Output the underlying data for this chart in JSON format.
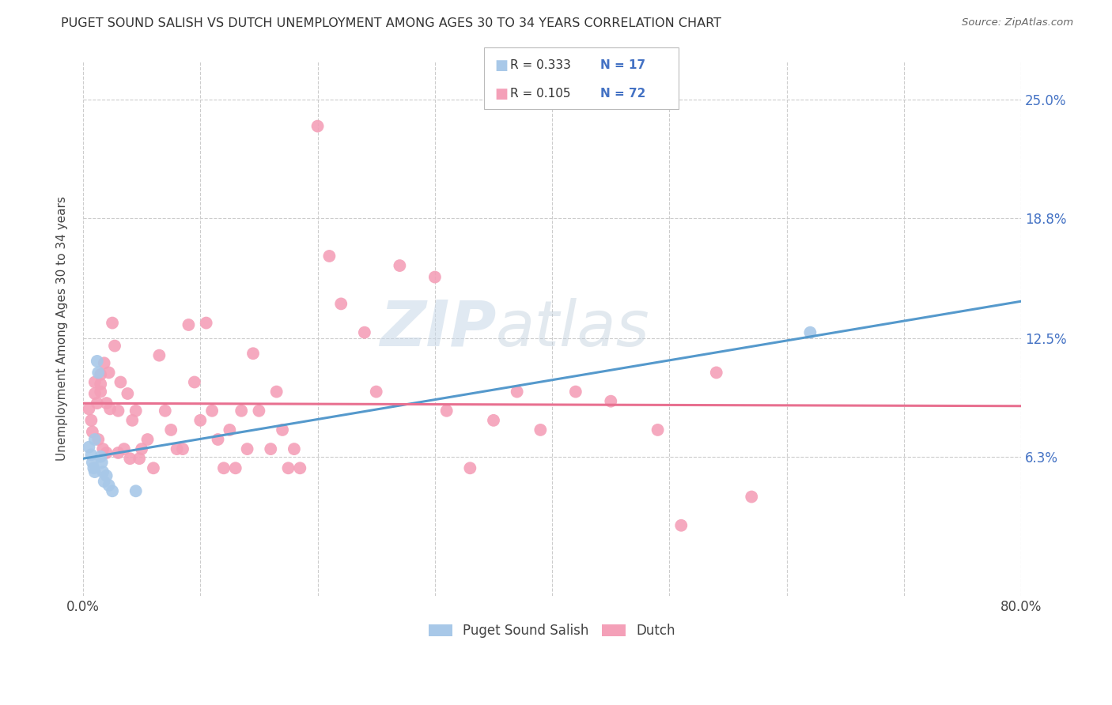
{
  "title": "PUGET SOUND SALISH VS DUTCH UNEMPLOYMENT AMONG AGES 30 TO 34 YEARS CORRELATION CHART",
  "source": "Source: ZipAtlas.com",
  "ylabel": "Unemployment Among Ages 30 to 34 years",
  "xlim": [
    0.0,
    0.8
  ],
  "ylim": [
    -0.01,
    0.27
  ],
  "yticks": [
    0.063,
    0.125,
    0.188,
    0.25
  ],
  "ytick_labels": [
    "6.3%",
    "12.5%",
    "18.8%",
    "25.0%"
  ],
  "xticks": [
    0.0,
    0.1,
    0.2,
    0.3,
    0.4,
    0.5,
    0.6,
    0.7,
    0.8
  ],
  "xtick_labels": [
    "0.0%",
    "",
    "",
    "",
    "",
    "",
    "",
    "",
    "80.0%"
  ],
  "color_salish": "#a8c8e8",
  "color_dutch": "#f4a0b8",
  "line_color_salish": "#5599cc",
  "line_color_dutch": "#e87090",
  "legend_R_salish": "R = 0.333",
  "legend_N_salish": "N = 17",
  "legend_R_dutch": "R = 0.105",
  "legend_N_dutch": "N = 72",
  "salish_x": [
    0.005,
    0.007,
    0.008,
    0.009,
    0.01,
    0.01,
    0.012,
    0.013,
    0.015,
    0.016,
    0.017,
    0.018,
    0.02,
    0.022,
    0.025,
    0.045,
    0.62
  ],
  "salish_y": [
    0.068,
    0.064,
    0.06,
    0.057,
    0.055,
    0.072,
    0.113,
    0.107,
    0.063,
    0.06,
    0.055,
    0.05,
    0.053,
    0.048,
    0.045,
    0.045,
    0.128
  ],
  "dutch_x": [
    0.005,
    0.007,
    0.008,
    0.01,
    0.01,
    0.012,
    0.013,
    0.015,
    0.015,
    0.015,
    0.017,
    0.018,
    0.02,
    0.02,
    0.022,
    0.023,
    0.025,
    0.027,
    0.03,
    0.03,
    0.032,
    0.035,
    0.038,
    0.04,
    0.042,
    0.045,
    0.048,
    0.05,
    0.055,
    0.06,
    0.065,
    0.07,
    0.075,
    0.08,
    0.085,
    0.09,
    0.095,
    0.1,
    0.105,
    0.11,
    0.115,
    0.12,
    0.125,
    0.13,
    0.135,
    0.14,
    0.145,
    0.15,
    0.16,
    0.165,
    0.17,
    0.175,
    0.18,
    0.185,
    0.2,
    0.21,
    0.22,
    0.24,
    0.25,
    0.27,
    0.3,
    0.31,
    0.33,
    0.35,
    0.37,
    0.39,
    0.42,
    0.45,
    0.49,
    0.51,
    0.54,
    0.57
  ],
  "dutch_y": [
    0.088,
    0.082,
    0.076,
    0.102,
    0.096,
    0.091,
    0.072,
    0.106,
    0.101,
    0.097,
    0.067,
    0.112,
    0.091,
    0.065,
    0.107,
    0.088,
    0.133,
    0.121,
    0.087,
    0.065,
    0.102,
    0.067,
    0.096,
    0.062,
    0.082,
    0.087,
    0.062,
    0.067,
    0.072,
    0.057,
    0.116,
    0.087,
    0.077,
    0.067,
    0.067,
    0.132,
    0.102,
    0.082,
    0.133,
    0.087,
    0.072,
    0.057,
    0.077,
    0.057,
    0.087,
    0.067,
    0.117,
    0.087,
    0.067,
    0.097,
    0.077,
    0.057,
    0.067,
    0.057,
    0.236,
    0.168,
    0.143,
    0.128,
    0.097,
    0.163,
    0.157,
    0.087,
    0.057,
    0.082,
    0.097,
    0.077,
    0.097,
    0.092,
    0.077,
    0.027,
    0.107,
    0.042
  ],
  "watermark_zip": "ZIP",
  "watermark_atlas": "atlas",
  "background_color": "#ffffff",
  "grid_color": "#cccccc"
}
